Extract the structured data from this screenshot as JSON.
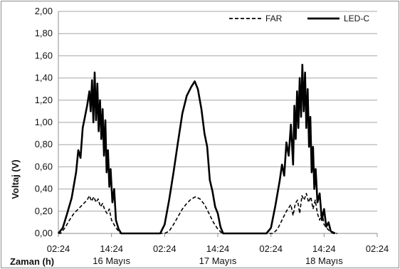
{
  "chart_data": {
    "type": "line",
    "title": "",
    "ylabel": "Voltaj (V)",
    "xlabel": "Zaman (h)",
    "ylim": [
      0,
      2.0
    ],
    "y_ticks": [
      "0,00",
      "0,20",
      "0,40",
      "0,60",
      "0,80",
      "1,00",
      "1,20",
      "1,40",
      "1,60",
      "1,80",
      "2,00"
    ],
    "x_ticks": [
      "02:24",
      "14:24",
      "02:24",
      "14:24",
      "02:24",
      "14:24",
      "02:24"
    ],
    "day_labels": [
      {
        "text": "16 Mayıs",
        "tick_index": 1
      },
      {
        "text": "17 Mayıs",
        "tick_index": 3
      },
      {
        "text": "18 Mayıs",
        "tick_index": 5
      }
    ],
    "legend_position": "top-right",
    "grid": "horizontal",
    "series": [
      {
        "name": "FAR",
        "style": "dashed",
        "color": "#000000",
        "points": [
          [
            0.0,
            0.0
          ],
          [
            0.5,
            0.0
          ],
          [
            1.5,
            0.05
          ],
          [
            2.5,
            0.12
          ],
          [
            3.5,
            0.18
          ],
          [
            4.5,
            0.22
          ],
          [
            5.5,
            0.26
          ],
          [
            6.5,
            0.3
          ],
          [
            7.0,
            0.34
          ],
          [
            7.5,
            0.29
          ],
          [
            8.0,
            0.33
          ],
          [
            8.5,
            0.28
          ],
          [
            9.0,
            0.31
          ],
          [
            9.5,
            0.24
          ],
          [
            10.0,
            0.27
          ],
          [
            10.5,
            0.21
          ],
          [
            11.0,
            0.18
          ],
          [
            11.5,
            0.22
          ],
          [
            12.0,
            0.12
          ],
          [
            13.0,
            0.05
          ],
          [
            14.0,
            0.0
          ],
          [
            16.0,
            0.0
          ],
          [
            24.0,
            0.0
          ],
          [
            25.0,
            0.02
          ],
          [
            26.0,
            0.08
          ],
          [
            27.0,
            0.15
          ],
          [
            28.0,
            0.22
          ],
          [
            29.0,
            0.27
          ],
          [
            30.0,
            0.31
          ],
          [
            31.0,
            0.33
          ],
          [
            32.0,
            0.31
          ],
          [
            33.0,
            0.26
          ],
          [
            34.0,
            0.18
          ],
          [
            35.0,
            0.1
          ],
          [
            36.0,
            0.04
          ],
          [
            37.0,
            0.0
          ],
          [
            40.0,
            0.0
          ],
          [
            48.5,
            0.0
          ],
          [
            49.5,
            0.04
          ],
          [
            50.5,
            0.12
          ],
          [
            51.5,
            0.2
          ],
          [
            52.5,
            0.26
          ],
          [
            53.0,
            0.16
          ],
          [
            53.5,
            0.27
          ],
          [
            54.0,
            0.3
          ],
          [
            54.5,
            0.18
          ],
          [
            55.0,
            0.34
          ],
          [
            55.5,
            0.3
          ],
          [
            56.0,
            0.36
          ],
          [
            56.5,
            0.28
          ],
          [
            57.0,
            0.33
          ],
          [
            57.5,
            0.22
          ],
          [
            58.0,
            0.3
          ],
          [
            58.5,
            0.18
          ],
          [
            59.0,
            0.12
          ],
          [
            59.5,
            0.2
          ],
          [
            60.0,
            0.08
          ],
          [
            61.0,
            0.03
          ],
          [
            62.0,
            0.0
          ],
          [
            63.0,
            0.0
          ]
        ]
      },
      {
        "name": "LED-C",
        "style": "solid",
        "color": "#000000",
        "points": [
          [
            0.0,
            0.0
          ],
          [
            1.0,
            0.05
          ],
          [
            2.0,
            0.18
          ],
          [
            3.0,
            0.32
          ],
          [
            4.0,
            0.55
          ],
          [
            4.5,
            0.75
          ],
          [
            5.0,
            0.68
          ],
          [
            5.5,
            0.95
          ],
          [
            6.0,
            1.05
          ],
          [
            6.5,
            1.15
          ],
          [
            7.0,
            1.28
          ],
          [
            7.3,
            1.1
          ],
          [
            7.6,
            1.38
          ],
          [
            7.9,
            1.0
          ],
          [
            8.2,
            1.45
          ],
          [
            8.5,
            1.02
          ],
          [
            8.8,
            1.35
          ],
          [
            9.1,
            0.92
          ],
          [
            9.4,
            1.2
          ],
          [
            9.7,
            0.85
          ],
          [
            10.0,
            1.12
          ],
          [
            10.3,
            0.7
          ],
          [
            10.6,
            1.02
          ],
          [
            10.9,
            0.55
          ],
          [
            11.2,
            0.75
          ],
          [
            11.5,
            0.42
          ],
          [
            11.8,
            0.58
          ],
          [
            12.2,
            0.28
          ],
          [
            12.6,
            0.4
          ],
          [
            13.0,
            0.12
          ],
          [
            13.6,
            0.04
          ],
          [
            14.2,
            0.0
          ],
          [
            16.0,
            0.0
          ],
          [
            23.0,
            0.0
          ],
          [
            24.0,
            0.08
          ],
          [
            25.0,
            0.3
          ],
          [
            26.0,
            0.55
          ],
          [
            27.0,
            0.82
          ],
          [
            28.0,
            1.08
          ],
          [
            29.0,
            1.24
          ],
          [
            30.0,
            1.32
          ],
          [
            30.8,
            1.37
          ],
          [
            31.5,
            1.3
          ],
          [
            32.3,
            1.12
          ],
          [
            33.0,
            0.9
          ],
          [
            33.6,
            0.78
          ],
          [
            34.2,
            0.48
          ],
          [
            34.8,
            0.38
          ],
          [
            35.4,
            0.24
          ],
          [
            36.0,
            0.18
          ],
          [
            36.6,
            0.06
          ],
          [
            37.2,
            0.0
          ],
          [
            40.0,
            0.0
          ],
          [
            47.0,
            0.0
          ],
          [
            48.0,
            0.05
          ],
          [
            49.0,
            0.25
          ],
          [
            50.0,
            0.48
          ],
          [
            50.5,
            0.62
          ],
          [
            51.0,
            0.52
          ],
          [
            51.5,
            0.82
          ],
          [
            52.0,
            0.7
          ],
          [
            52.5,
            0.98
          ],
          [
            53.0,
            0.62
          ],
          [
            53.3,
            1.15
          ],
          [
            53.6,
            0.85
          ],
          [
            53.9,
            1.28
          ],
          [
            54.2,
            0.95
          ],
          [
            54.5,
            1.4
          ],
          [
            54.8,
            1.05
          ],
          [
            55.1,
            1.52
          ],
          [
            55.4,
            1.1
          ],
          [
            55.7,
            1.45
          ],
          [
            56.0,
            0.95
          ],
          [
            56.3,
            1.3
          ],
          [
            56.6,
            0.78
          ],
          [
            56.9,
            1.05
          ],
          [
            57.2,
            0.55
          ],
          [
            57.5,
            0.78
          ],
          [
            57.8,
            0.4
          ],
          [
            58.1,
            0.58
          ],
          [
            58.5,
            0.28
          ],
          [
            59.0,
            0.36
          ],
          [
            59.5,
            0.12
          ],
          [
            60.0,
            0.22
          ],
          [
            60.5,
            0.06
          ],
          [
            61.0,
            0.1
          ],
          [
            61.5,
            0.02
          ],
          [
            62.5,
            0.0
          ]
        ]
      }
    ]
  }
}
